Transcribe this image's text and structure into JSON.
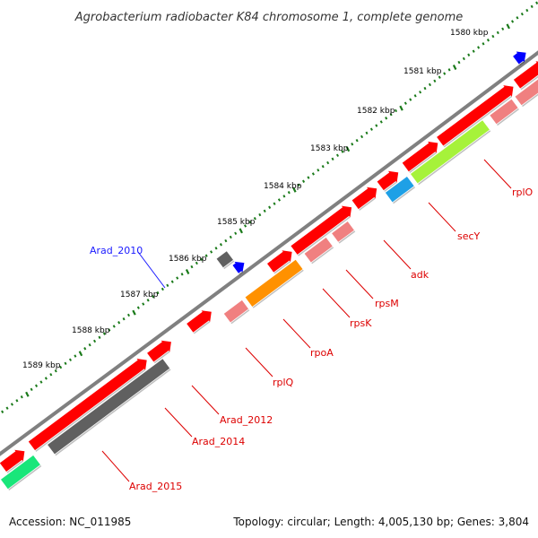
{
  "title": "Agrobacterium radiobacter K84 chromosome 1, complete genome",
  "accession": "Accession: NC_011985",
  "summary": "Topology: circular; Length: 4,005,130 bp; Genes: 3,804",
  "colors": {
    "backbone": "#808080",
    "tick": "#1a7a1a",
    "gene": "#ff0000",
    "gene_light": "#f08080",
    "gene_gray": "#606060",
    "gene_blue": "#0000ff",
    "gene_sky": "#1ea0e6",
    "gene_lime": "#a6f23a",
    "gene_orange": "#ff9100",
    "gene_green": "#19e67a",
    "label_red": "#dd0000",
    "label_blue": "#1a1aff"
  },
  "ruler": [
    {
      "label": "1580 kbp"
    },
    {
      "label": "1581 kbp"
    },
    {
      "label": "1582 kbp"
    },
    {
      "label": "1583 kbp"
    },
    {
      "label": "1584 kbp"
    },
    {
      "label": "1585 kbp"
    },
    {
      "label": "1586 kbp"
    },
    {
      "label": "1587 kbp"
    },
    {
      "label": "1588 kbp"
    },
    {
      "label": "1589 kbp"
    }
  ],
  "gene_labels": [
    {
      "name": "Arad_2010",
      "color": "blue"
    },
    {
      "name": "rplO",
      "color": "red"
    },
    {
      "name": "secY",
      "color": "red"
    },
    {
      "name": "adk",
      "color": "red"
    },
    {
      "name": "rpsM",
      "color": "red"
    },
    {
      "name": "rpsK",
      "color": "red"
    },
    {
      "name": "rpoA",
      "color": "red"
    },
    {
      "name": "rplQ",
      "color": "red"
    },
    {
      "name": "Arad_2012",
      "color": "red"
    },
    {
      "name": "Arad_2014",
      "color": "red"
    },
    {
      "name": "Arad_2015",
      "color": "red"
    }
  ]
}
